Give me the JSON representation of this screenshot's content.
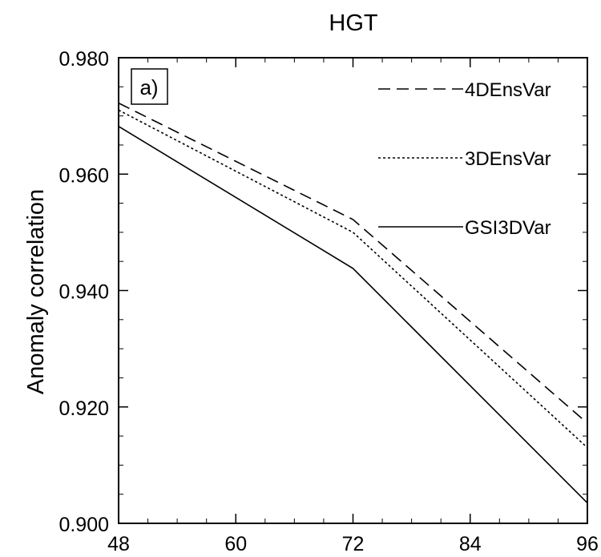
{
  "chart_data": {
    "type": "line",
    "title": "HGT",
    "panel_label": "a)",
    "xlabel": "",
    "ylabel": "Anomaly correlation",
    "x": [
      48,
      72,
      96
    ],
    "xlim": [
      48,
      96
    ],
    "ylim": [
      0.9,
      0.98
    ],
    "xticks": [
      48,
      60,
      72,
      84,
      96
    ],
    "xtick_labels": [
      "48",
      "60",
      "72",
      "84",
      "96"
    ],
    "yticks": [
      0.9,
      0.92,
      0.94,
      0.96,
      0.98
    ],
    "ytick_labels": [
      "0.900",
      "0.920",
      "0.940",
      "0.960",
      "0.980"
    ],
    "grid": false,
    "legend_position": "top-right",
    "series": [
      {
        "name": "4DEnsVar",
        "style": "dashed",
        "color": "#000000",
        "values": [
          0.9722,
          0.9522,
          0.9172
        ]
      },
      {
        "name": "3DEnsVar",
        "style": "dotted",
        "color": "#000000",
        "values": [
          0.971,
          0.95,
          0.913
        ]
      },
      {
        "name": "GSI3DVar",
        "style": "solid",
        "color": "#000000",
        "values": [
          0.9682,
          0.9438,
          0.9035
        ]
      }
    ]
  }
}
